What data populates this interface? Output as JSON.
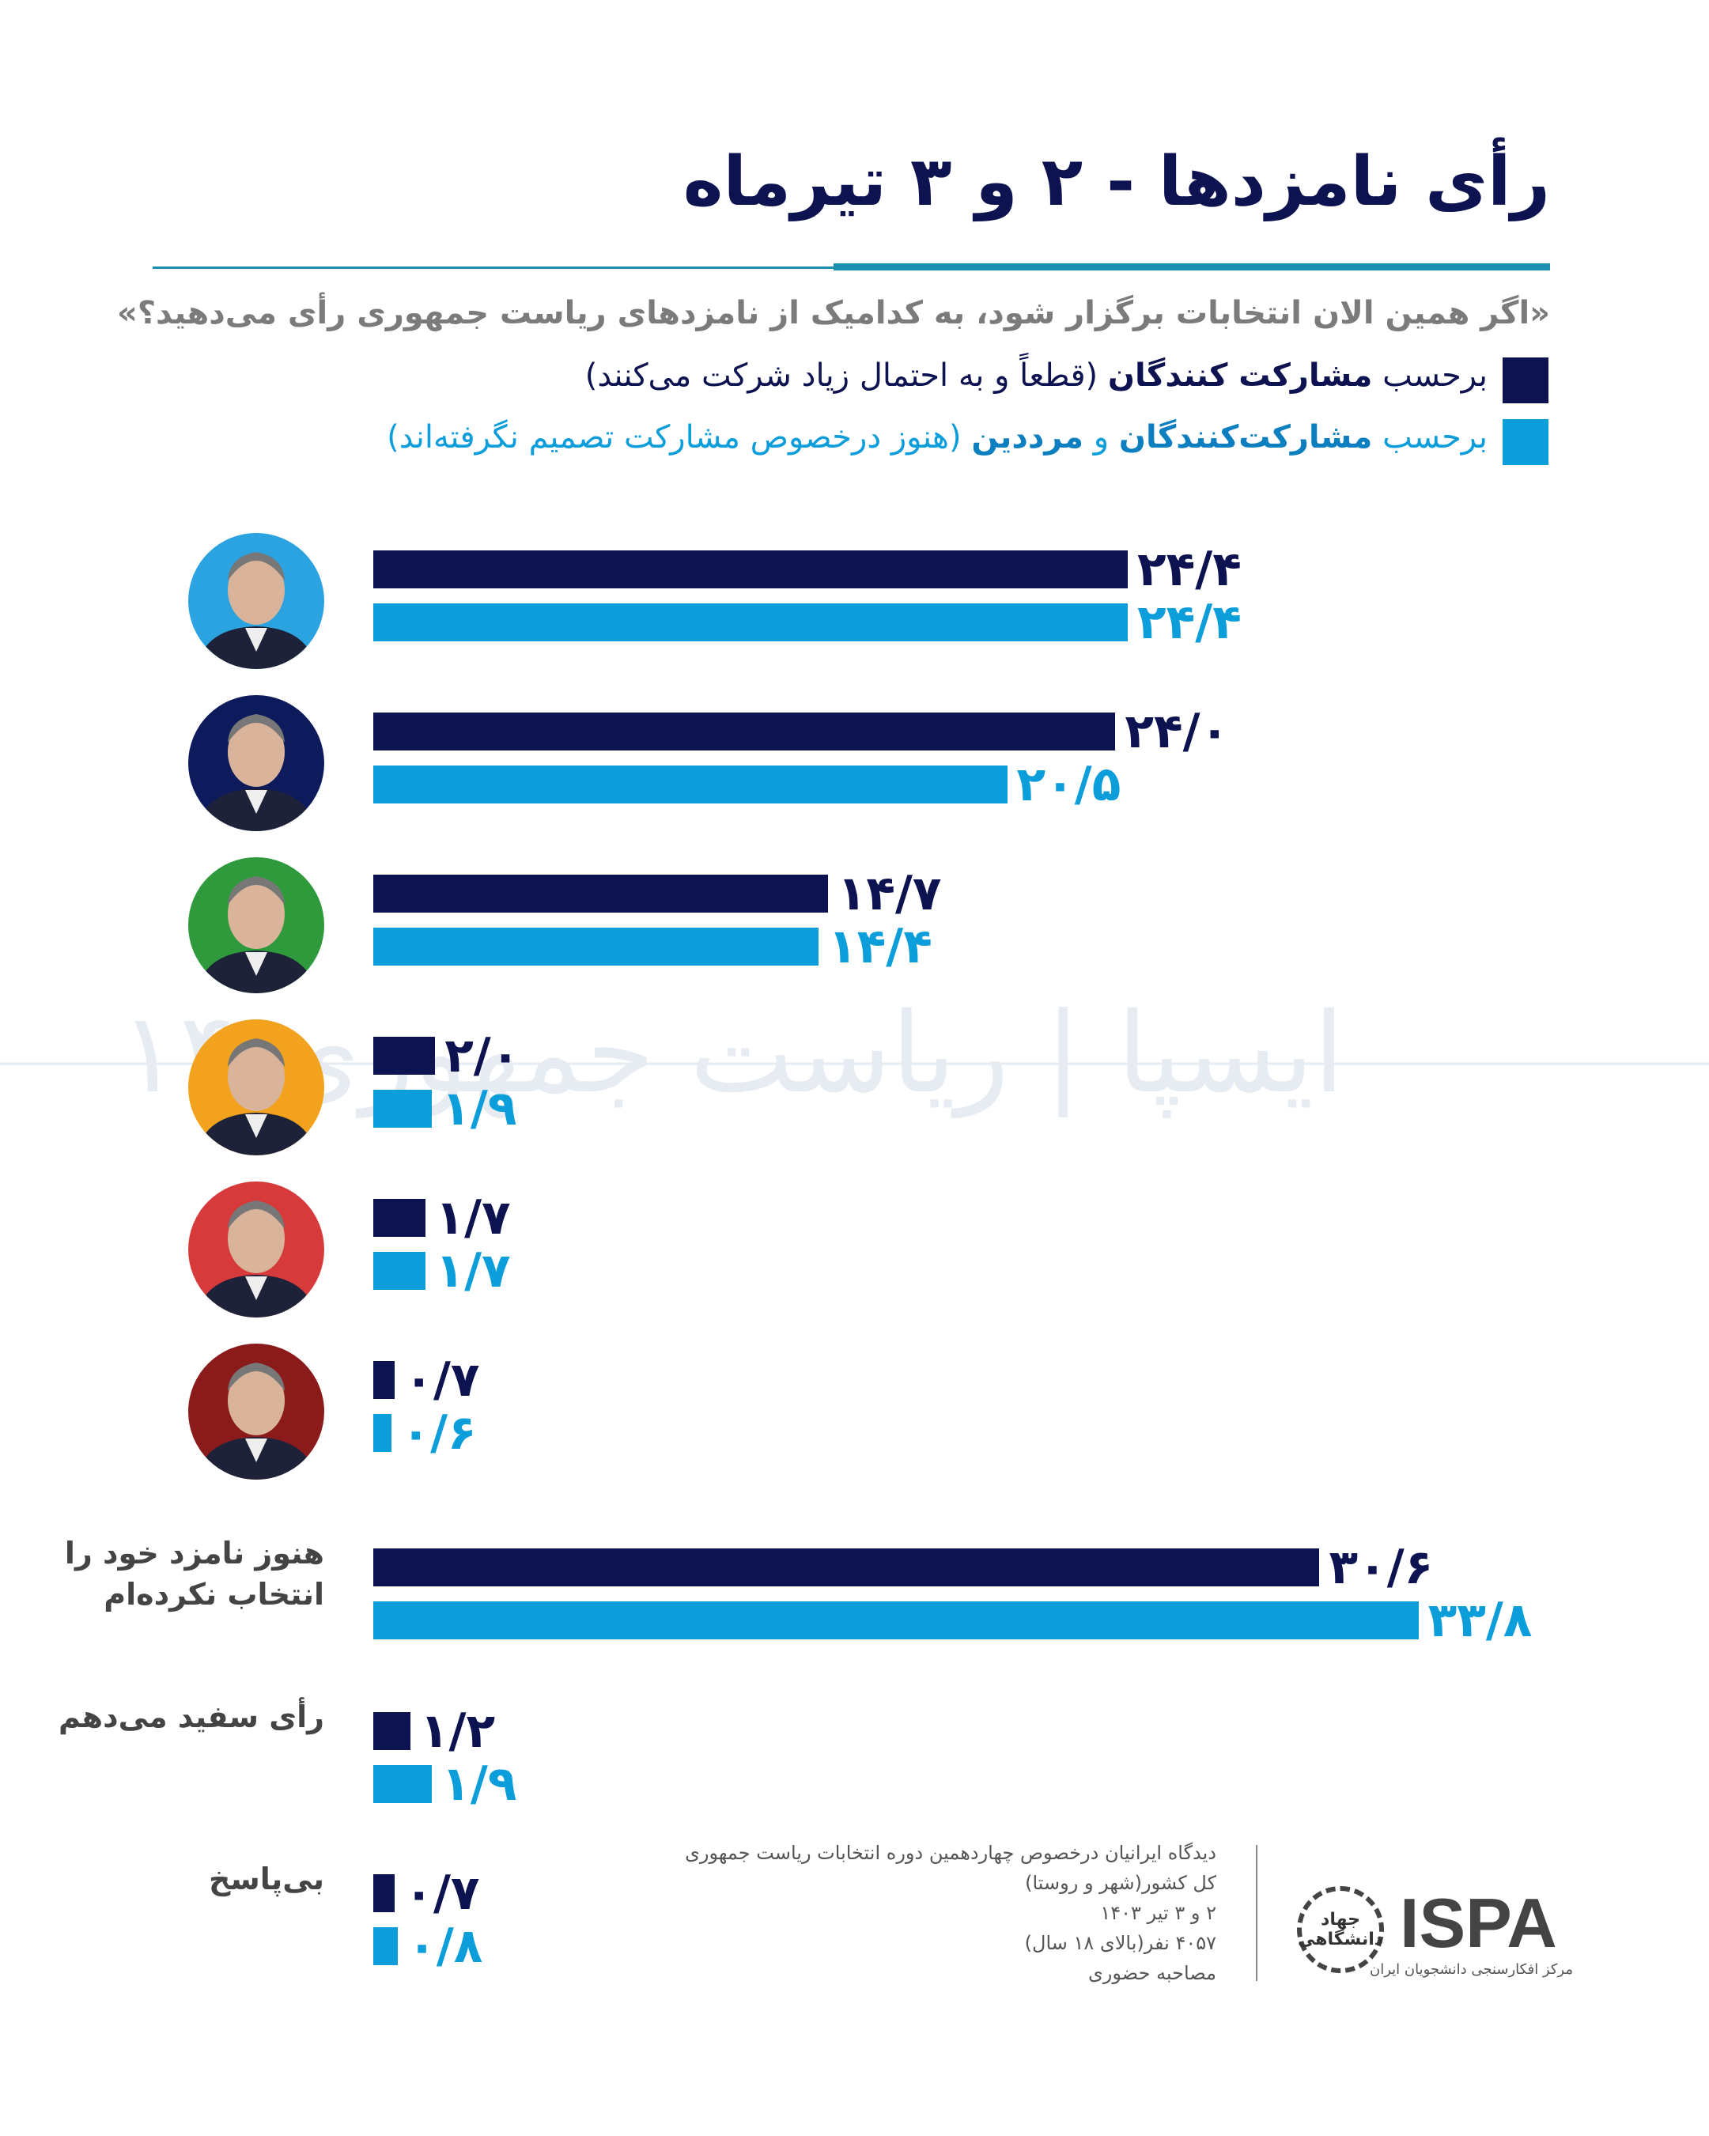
{
  "header": {
    "title": "رأی نامزدها - ۲ و ۳ تیرماه",
    "question": "«اگر همین الان انتخابات برگزار شود، به کدامیک از نامزدهای ریاست جمهوری رأی می‌دهید؟»"
  },
  "legend": [
    {
      "prefix": "برحسب ",
      "bold": "مشارکت کنندگان",
      "mid": "",
      "bold2": "",
      "suffix": " (قطعاً و به احتمال زیاد شرکت می‌کنند)",
      "color": "#0d1250"
    },
    {
      "prefix": "برحسب ",
      "bold": "مشارکت‌کنندگان",
      "mid": " و ",
      "bold2": "مرددین",
      "suffix": " (هنوز درخصوص مشارکت تصمیم نگرفته‌اند)",
      "color": "#0c9ddb"
    }
  ],
  "chart_data": {
    "type": "bar",
    "orientation": "horizontal",
    "categories": [
      "candidate-1",
      "candidate-2",
      "candidate-3",
      "candidate-4",
      "candidate-5",
      "candidate-6",
      "هنوز نامزد خود را انتخاب نکرده‌ام",
      "رأی سفید می‌دهم",
      "بی‌پاسخ"
    ],
    "category_photo_colors": [
      "#2aa3e0",
      "#0d1a5c",
      "#2f9a3c",
      "#f2a21c",
      "#d63a3a",
      "#8b1a1a"
    ],
    "series": [
      {
        "name": "برحسب مشارکت کنندگان",
        "color": "#0d1250",
        "values": [
          24.4,
          24.0,
          14.7,
          2.0,
          1.7,
          0.7,
          30.6,
          1.2,
          0.7
        ],
        "labels": [
          "۲۴/۴",
          "۲۴/۰",
          "۱۴/۷",
          "۲/۰",
          "۱/۷",
          "۰/۷",
          "۳۰/۶",
          "۱/۲",
          "۰/۷"
        ]
      },
      {
        "name": "برحسب مشارکت‌کنندگان و مرددین",
        "color": "#0c9ddb",
        "values": [
          24.4,
          20.5,
          14.4,
          1.9,
          1.7,
          0.6,
          33.8,
          1.9,
          0.8
        ],
        "labels": [
          "۲۴/۴",
          "۲۰/۵",
          "۱۴/۴",
          "۱/۹",
          "۱/۷",
          "۰/۶",
          "۳۳/۸",
          "۱/۹",
          "۰/۸"
        ]
      }
    ],
    "xlim": [
      0,
      35
    ],
    "grid": false
  },
  "footer": {
    "lines": [
      "دیدگاه ایرانیان درخصوص چهاردهمین دوره انتخابات ریاست جمهوری",
      "کل کشور(شهر و روستا)",
      "۲ و ۳ تیر ۱۴۰۳",
      "۴۰۵۷ نفر(بالای ۱۸ سال)",
      "مصاحبه حضوری"
    ],
    "logo_text": "ISPA",
    "logo_sub": "مرکز افکارسنجی دانشجویان ایران",
    "seal_text": "جهاد دانشگاهی"
  },
  "watermark": "ایسپا | ریاست جمهوری ۱۴"
}
